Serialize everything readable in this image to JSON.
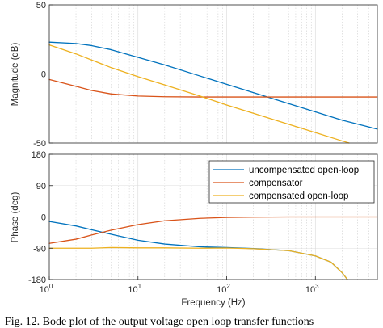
{
  "chart_data": [
    {
      "type": "line",
      "panel": "magnitude",
      "ylabel": "Magnitude (dB)",
      "xscale": "log",
      "xlim": [
        1,
        5000
      ],
      "ylim": [
        -50,
        50
      ],
      "yticks": [
        50,
        0,
        -50
      ],
      "grid": true,
      "series": [
        {
          "name": "uncompensated open-loop",
          "color": "#0072BD",
          "x": [
            1,
            2,
            3,
            5,
            10,
            20,
            50,
            100,
            200,
            500,
            1000,
            2000,
            5000
          ],
          "y": [
            23,
            22,
            20.5,
            17.5,
            12,
            6.5,
            -1.5,
            -7.5,
            -13.5,
            -21.5,
            -27.5,
            -33.5,
            -40
          ]
        },
        {
          "name": "compensator",
          "color": "#D95319",
          "x": [
            1,
            2,
            3,
            5,
            10,
            20,
            50,
            100,
            1000,
            5000
          ],
          "y": [
            -4,
            -9,
            -12,
            -14.5,
            -16,
            -16.5,
            -16.7,
            -16.7,
            -16.7,
            -16.7
          ]
        },
        {
          "name": "compensated open-loop",
          "color": "#EDB120",
          "x": [
            1,
            2,
            5,
            10,
            20,
            50,
            100,
            200,
            500,
            1000,
            2000,
            2400
          ],
          "y": [
            21,
            14.5,
            4.5,
            -2,
            -8,
            -16,
            -22.5,
            -28.5,
            -36.5,
            -42.5,
            -48.5,
            -50
          ]
        }
      ]
    },
    {
      "type": "line",
      "panel": "phase",
      "xlabel": "Frequency  (Hz)",
      "ylabel": "Phase (deg)",
      "xscale": "log",
      "xlim": [
        1,
        5000
      ],
      "ylim": [
        -180,
        180
      ],
      "yticks": [
        180,
        90,
        0,
        -90,
        -180
      ],
      "xticks": [
        {
          "value": 1,
          "base": "10",
          "exp": "0"
        },
        {
          "value": 10,
          "base": "10",
          "exp": "1"
        },
        {
          "value": 100,
          "base": "10",
          "exp": "2"
        },
        {
          "value": 1000,
          "base": "10",
          "exp": "3"
        }
      ],
      "grid": true,
      "legend": "top-right",
      "series": [
        {
          "name": "uncompensated open-loop",
          "color": "#0072BD",
          "x": [
            1,
            2,
            3,
            5,
            10,
            20,
            50,
            100,
            200,
            500,
            1000,
            1500,
            2000,
            2300
          ],
          "y": [
            -13,
            -26,
            -37,
            -50,
            -67,
            -78,
            -86,
            -88,
            -91,
            -97,
            -112,
            -130,
            -160,
            -180
          ]
        },
        {
          "name": "compensator",
          "color": "#D95319",
          "x": [
            1,
            2,
            3,
            5,
            10,
            20,
            50,
            100,
            200,
            500,
            1000,
            5000
          ],
          "y": [
            -76,
            -64,
            -52,
            -38,
            -22,
            -11,
            -4,
            -1.5,
            -0.5,
            0,
            0,
            0
          ]
        },
        {
          "name": "compensated open-loop",
          "color": "#EDB120",
          "x": [
            1,
            2,
            3,
            5,
            10,
            20,
            50,
            100,
            200,
            500,
            1000,
            1500,
            2000,
            2300
          ],
          "y": [
            -90,
            -90,
            -90,
            -88,
            -89,
            -89,
            -90,
            -89.5,
            -91.5,
            -97,
            -112,
            -130,
            -160,
            -180
          ]
        }
      ]
    }
  ],
  "caption": "Fig. 12.  Bode plot of the output voltage open loop transfer functions"
}
